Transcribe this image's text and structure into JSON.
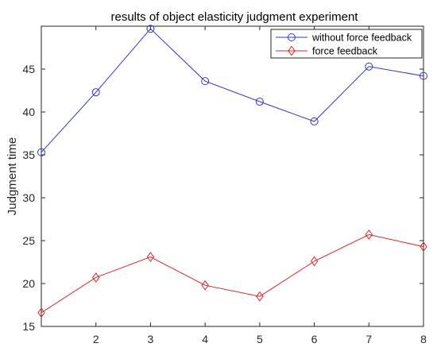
{
  "chart_data": {
    "type": "line",
    "title": "results of object elasticity judgment experiment",
    "xlabel": "",
    "ylabel": "Judgment time",
    "xlim": [
      1,
      8
    ],
    "ylim": [
      15,
      50
    ],
    "xticks": [
      2,
      3,
      4,
      5,
      6,
      7,
      8
    ],
    "yticks": [
      15,
      20,
      25,
      30,
      35,
      40,
      45
    ],
    "grid": false,
    "legend_position": "top-right",
    "x": [
      1,
      2,
      3,
      4,
      5,
      6,
      7,
      8
    ],
    "series": [
      {
        "name": "without force feedback",
        "color": "#3333cc",
        "marker": "circle",
        "values": [
          35.3,
          42.3,
          49.7,
          43.6,
          41.2,
          38.9,
          45.3,
          44.2
        ]
      },
      {
        "name": "force feedback",
        "color": "#d62728",
        "marker": "diamond",
        "values": [
          16.6,
          20.7,
          23.1,
          19.8,
          18.5,
          22.6,
          25.7,
          24.3
        ]
      }
    ]
  }
}
